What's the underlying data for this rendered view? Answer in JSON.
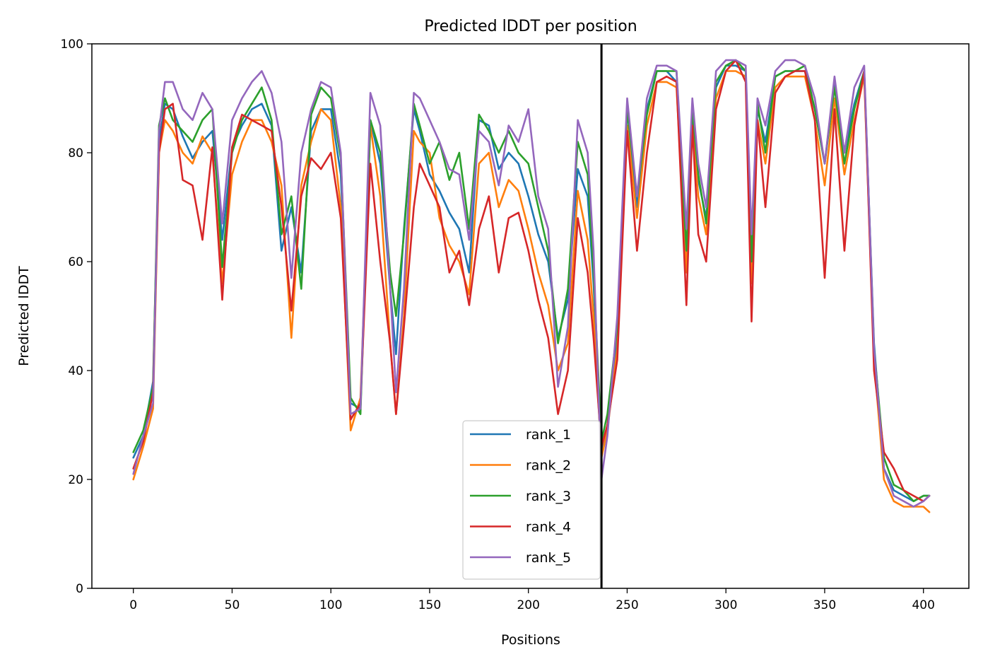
{
  "chart_data": {
    "type": "line",
    "title": "Predicted lDDT per position",
    "xlabel": "Positions",
    "ylabel": "Predicted lDDT",
    "xlim": [
      -21,
      423
    ],
    "ylim": [
      0,
      100
    ],
    "xticks": [
      0,
      50,
      100,
      150,
      200,
      250,
      300,
      350,
      400
    ],
    "yticks": [
      0,
      20,
      40,
      60,
      80,
      100
    ],
    "xtick_labels": [
      "0",
      "50",
      "100",
      "150",
      "200",
      "250",
      "300",
      "350",
      "400"
    ],
    "ytick_labels": [
      "0",
      "20",
      "40",
      "60",
      "80",
      "100"
    ],
    "grid": false,
    "legend_position": "lower-center",
    "chain_break": 237,
    "chain_break_color": "#000000",
    "series": [
      {
        "name": "rank_1",
        "color": "#1f77b4",
        "x": [
          0,
          5,
          10,
          13,
          16,
          20,
          25,
          30,
          35,
          40,
          45,
          50,
          55,
          60,
          65,
          70,
          75,
          80,
          85,
          90,
          95,
          100,
          105,
          110,
          115,
          120,
          125,
          130,
          133,
          137,
          142,
          145,
          150,
          155,
          160,
          165,
          170,
          175,
          180,
          185,
          190,
          195,
          200,
          205,
          210,
          215,
          220,
          225,
          230,
          233,
          237,
          240,
          245,
          250,
          255,
          260,
          265,
          270,
          275,
          280,
          283,
          286,
          290,
          295,
          300,
          305,
          310,
          313,
          316,
          320,
          325,
          330,
          335,
          340,
          345,
          350,
          355,
          360,
          365,
          370,
          375,
          380,
          385,
          390,
          395,
          400,
          403
        ],
        "y": [
          24,
          28,
          38,
          82,
          89,
          88,
          83,
          79,
          82,
          84,
          64,
          81,
          85,
          88,
          89,
          85,
          62,
          70,
          58,
          84,
          88,
          88,
          76,
          34,
          33,
          86,
          78,
          55,
          43,
          66,
          88,
          84,
          76,
          73,
          69,
          66,
          58,
          86,
          85,
          77,
          80,
          78,
          72,
          65,
          60,
          46,
          53,
          77,
          72,
          56,
          25,
          30,
          46,
          88,
          70,
          88,
          95,
          95,
          93,
          60,
          87,
          75,
          68,
          92,
          96,
          96,
          95,
          62,
          88,
          82,
          94,
          95,
          95,
          95,
          88,
          78,
          93,
          80,
          89,
          95,
          45,
          22,
          18,
          17,
          16,
          17,
          17
        ]
      },
      {
        "name": "rank_2",
        "color": "#ff7f0e",
        "x": [
          0,
          5,
          10,
          13,
          16,
          20,
          25,
          30,
          35,
          40,
          45,
          50,
          55,
          60,
          65,
          70,
          75,
          80,
          85,
          90,
          95,
          100,
          105,
          110,
          115,
          120,
          125,
          130,
          133,
          137,
          142,
          145,
          150,
          155,
          160,
          165,
          170,
          175,
          180,
          185,
          190,
          195,
          200,
          205,
          210,
          215,
          220,
          225,
          230,
          233,
          237,
          240,
          245,
          250,
          255,
          260,
          265,
          270,
          275,
          280,
          283,
          286,
          290,
          295,
          300,
          305,
          310,
          313,
          316,
          320,
          325,
          330,
          335,
          340,
          345,
          350,
          355,
          360,
          365,
          370,
          375,
          380,
          385,
          390,
          395,
          400,
          403
        ],
        "y": [
          20,
          26,
          33,
          80,
          86,
          84,
          80,
          78,
          83,
          80,
          56,
          76,
          82,
          86,
          86,
          82,
          74,
          46,
          74,
          82,
          88,
          86,
          70,
          29,
          35,
          85,
          72,
          45,
          32,
          50,
          84,
          82,
          80,
          68,
          63,
          60,
          54,
          78,
          80,
          70,
          75,
          73,
          66,
          58,
          52,
          40,
          45,
          73,
          64,
          50,
          24,
          29,
          44,
          85,
          68,
          85,
          93,
          93,
          92,
          58,
          85,
          72,
          65,
          90,
          95,
          95,
          94,
          56,
          86,
          78,
          92,
          94,
          94,
          94,
          86,
          74,
          90,
          76,
          86,
          94,
          42,
          20,
          16,
          15,
          15,
          15,
          14
        ]
      },
      {
        "name": "rank_3",
        "color": "#2ca02c",
        "x": [
          0,
          5,
          10,
          13,
          16,
          20,
          25,
          30,
          35,
          40,
          45,
          50,
          55,
          60,
          65,
          70,
          75,
          80,
          85,
          90,
          95,
          100,
          105,
          110,
          115,
          120,
          125,
          130,
          133,
          137,
          142,
          145,
          150,
          155,
          160,
          165,
          170,
          175,
          180,
          185,
          190,
          195,
          200,
          205,
          210,
          215,
          220,
          225,
          230,
          233,
          237,
          240,
          245,
          250,
          255,
          260,
          265,
          270,
          275,
          280,
          283,
          286,
          290,
          295,
          300,
          305,
          310,
          313,
          316,
          320,
          325,
          330,
          335,
          340,
          345,
          350,
          355,
          360,
          365,
          370,
          375,
          380,
          385,
          390,
          395,
          400,
          403
        ],
        "y": [
          25,
          29,
          37,
          85,
          90,
          86,
          84,
          82,
          86,
          88,
          59,
          80,
          86,
          89,
          92,
          86,
          65,
          72,
          55,
          87,
          92,
          90,
          79,
          35,
          32,
          86,
          80,
          58,
          50,
          65,
          89,
          85,
          78,
          82,
          75,
          80,
          66,
          87,
          84,
          80,
          84,
          80,
          78,
          70,
          62,
          45,
          55,
          82,
          76,
          58,
          27,
          32,
          48,
          88,
          72,
          87,
          95,
          95,
          95,
          62,
          88,
          76,
          67,
          93,
          96,
          97,
          95,
          60,
          89,
          80,
          94,
          95,
          95,
          96,
          88,
          78,
          92,
          78,
          88,
          95,
          44,
          24,
          19,
          18,
          16,
          17,
          17
        ]
      },
      {
        "name": "rank_4",
        "color": "#d62728",
        "x": [
          0,
          5,
          10,
          13,
          16,
          20,
          25,
          30,
          35,
          40,
          45,
          50,
          55,
          60,
          65,
          70,
          75,
          80,
          85,
          90,
          95,
          100,
          105,
          110,
          115,
          120,
          125,
          130,
          133,
          137,
          142,
          145,
          150,
          155,
          160,
          165,
          170,
          175,
          180,
          185,
          190,
          195,
          200,
          205,
          210,
          215,
          220,
          225,
          230,
          233,
          237,
          240,
          245,
          250,
          255,
          260,
          265,
          270,
          275,
          280,
          283,
          286,
          290,
          295,
          300,
          305,
          310,
          313,
          316,
          320,
          325,
          330,
          335,
          340,
          345,
          350,
          355,
          360,
          365,
          370,
          375,
          380,
          385,
          390,
          395,
          400,
          403
        ],
        "y": [
          22,
          27,
          36,
          80,
          88,
          89,
          75,
          74,
          64,
          81,
          53,
          81,
          87,
          86,
          85,
          84,
          70,
          51,
          72,
          79,
          77,
          80,
          68,
          31,
          34,
          78,
          60,
          45,
          32,
          48,
          70,
          78,
          74,
          70,
          58,
          62,
          52,
          66,
          72,
          58,
          68,
          69,
          62,
          53,
          46,
          32,
          40,
          68,
          58,
          46,
          26,
          30,
          42,
          84,
          62,
          80,
          93,
          94,
          93,
          52,
          85,
          65,
          60,
          88,
          95,
          97,
          93,
          49,
          86,
          70,
          91,
          94,
          95,
          95,
          86,
          57,
          88,
          62,
          85,
          95,
          40,
          25,
          22,
          18,
          17,
          16,
          17
        ]
      },
      {
        "name": "rank_5",
        "color": "#9467bd",
        "x": [
          0,
          5,
          10,
          13,
          16,
          20,
          25,
          30,
          35,
          40,
          45,
          50,
          55,
          60,
          65,
          70,
          75,
          80,
          85,
          90,
          95,
          100,
          105,
          110,
          115,
          120,
          125,
          130,
          133,
          137,
          142,
          145,
          150,
          155,
          160,
          165,
          170,
          175,
          180,
          185,
          190,
          195,
          200,
          205,
          210,
          215,
          220,
          225,
          230,
          233,
          237,
          240,
          245,
          250,
          255,
          260,
          265,
          270,
          275,
          280,
          283,
          286,
          290,
          295,
          300,
          305,
          310,
          313,
          316,
          320,
          325,
          330,
          335,
          340,
          345,
          350,
          355,
          360,
          365,
          370,
          375,
          380,
          385,
          390,
          395,
          400,
          403
        ],
        "y": [
          21,
          28,
          34,
          84,
          93,
          93,
          88,
          86,
          91,
          88,
          67,
          86,
          90,
          93,
          95,
          91,
          82,
          57,
          80,
          88,
          93,
          92,
          80,
          32,
          33,
          91,
          85,
          55,
          36,
          55,
          91,
          90,
          86,
          82,
          77,
          76,
          64,
          84,
          82,
          74,
          85,
          82,
          88,
          72,
          66,
          37,
          48,
          86,
          80,
          62,
          20,
          28,
          50,
          90,
          72,
          90,
          96,
          96,
          95,
          66,
          90,
          78,
          70,
          95,
          97,
          97,
          96,
          65,
          90,
          85,
          95,
          97,
          97,
          96,
          90,
          78,
          94,
          80,
          92,
          96,
          44,
          22,
          17,
          16,
          15,
          16,
          17
        ]
      }
    ]
  }
}
